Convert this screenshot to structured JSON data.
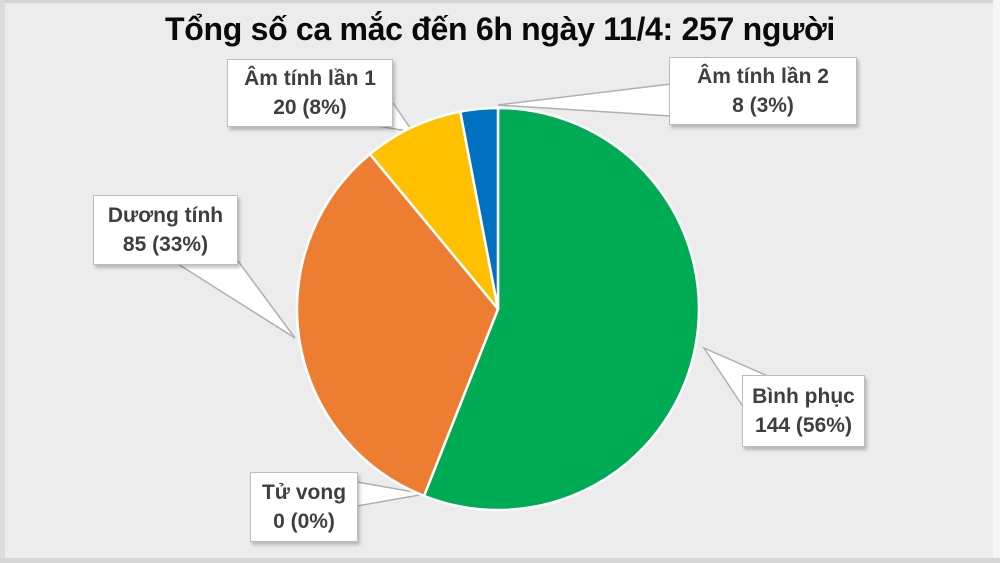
{
  "title": "Tổng số ca mắc đến 6h ngày 11/4: 257 người",
  "colors": {
    "background": "#ECECEC",
    "title_text": "#0a0a0a",
    "callout_text": "#3f3f3f",
    "callout_border": "#bdbdbd",
    "leader_line": "#b0b0b0",
    "slice_separator": "#ffffff"
  },
  "chart_data": {
    "type": "pie",
    "title": "Tổng số ca mắc đến 6h ngày 11/4: 257 người",
    "total": 257,
    "start_angle_deg": 0,
    "direction": "clockwise",
    "legend_position": "callout-labels",
    "slices": [
      {
        "label": "Bình phục",
        "value": 144,
        "percent": 56,
        "display": "144 (56%)",
        "color": "#00AB55"
      },
      {
        "label": "Tử vong",
        "value": 0,
        "percent": 0,
        "display": "0 (0%)",
        "color": null
      },
      {
        "label": "Dương tính",
        "value": 85,
        "percent": 33,
        "display": "85 (33%)",
        "color": "#ED7D31"
      },
      {
        "label": "Âm tính lần 1",
        "value": 20,
        "percent": 8,
        "display": "20 (8%)",
        "color": "#FFC000"
      },
      {
        "label": "Âm tính lần 2",
        "value": 8,
        "percent": 3,
        "display": "8 (3%)",
        "color": "#0070C0"
      }
    ]
  }
}
